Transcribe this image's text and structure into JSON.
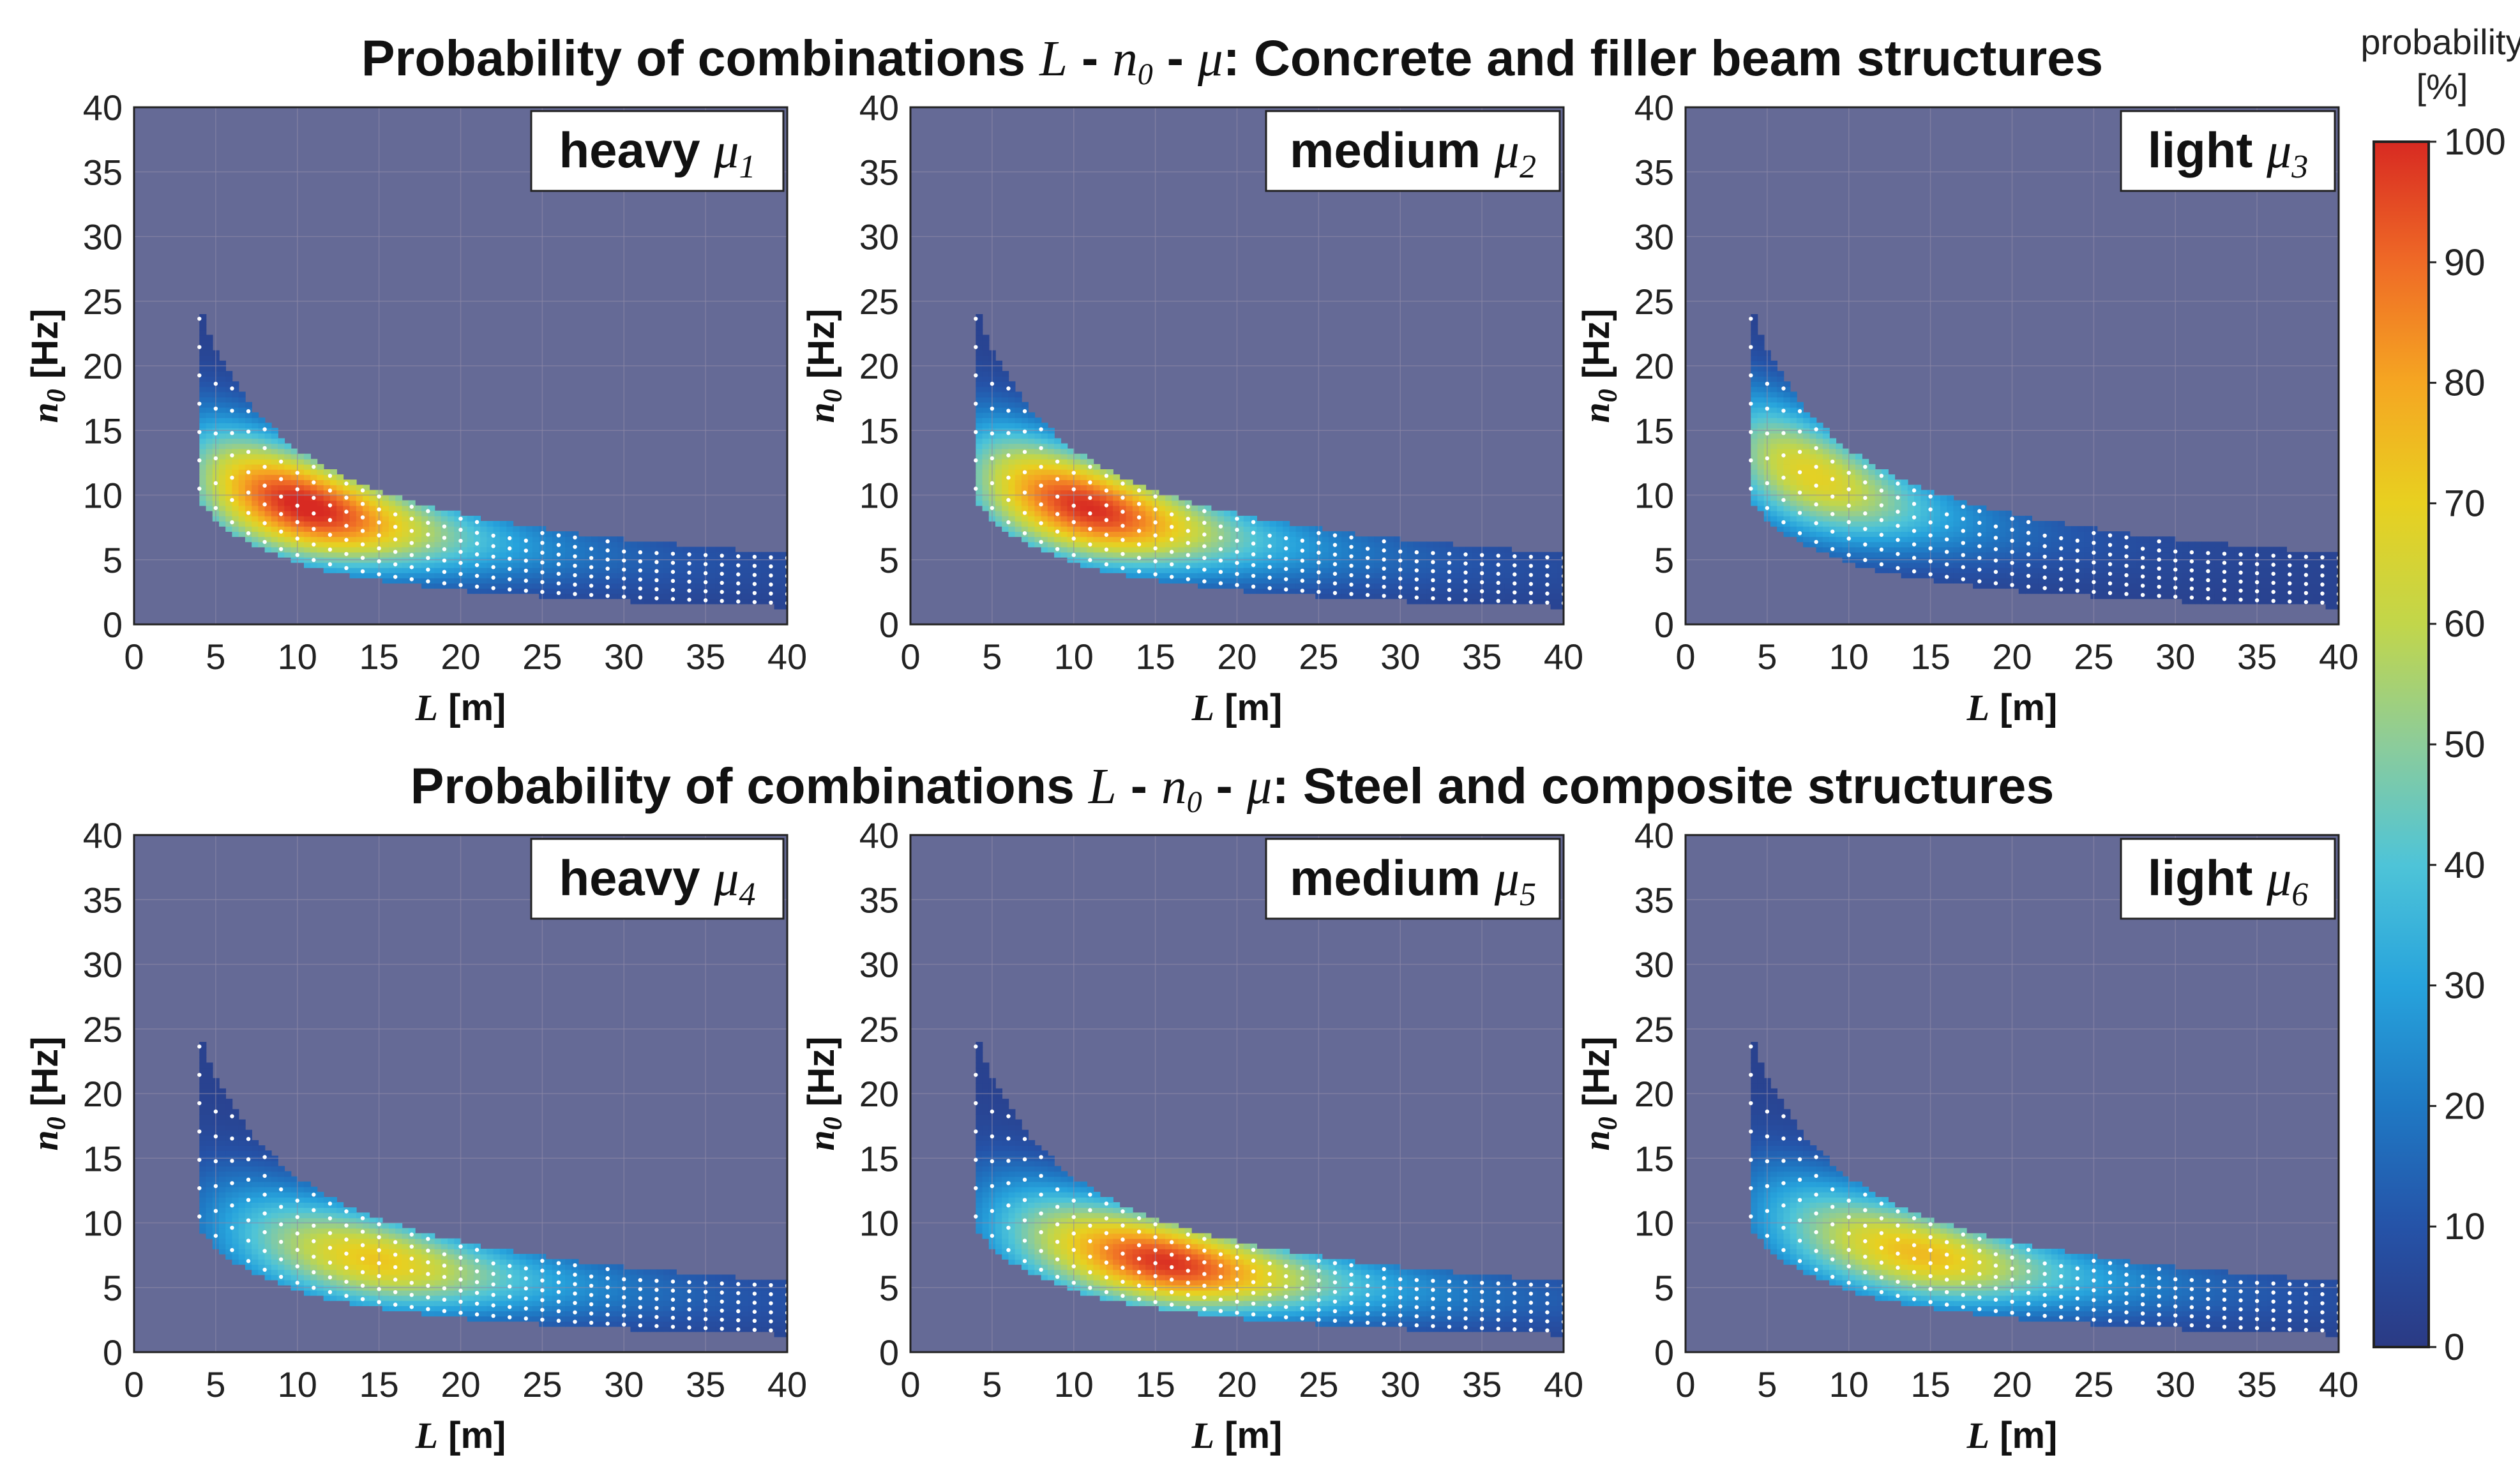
{
  "titles": {
    "row1": {
      "prefix": "Probability of combinations ",
      "L": "L",
      "sep1": " - ",
      "n": "n",
      "sub0": "0",
      "sep2": " - ",
      "mu": "μ",
      "suffix": ":  Concrete and filler beam structures"
    },
    "row2": {
      "prefix": "Probability of combinations ",
      "L": "L",
      "sep1": " - ",
      "n": "n",
      "sub0": "0",
      "sep2": " - ",
      "mu": "μ",
      "suffix": ":  Steel and composite structures"
    }
  },
  "axis": {
    "x_unit": " [m]",
    "x_var": "L",
    "y_var": "n",
    "y_sub": "0",
    "y_unit": " [Hz]",
    "xticks": [
      "0",
      "5",
      "10",
      "15",
      "20",
      "25",
      "30",
      "35",
      "40"
    ],
    "yticks": [
      "0",
      "5",
      "10",
      "15",
      "20",
      "25",
      "30",
      "35",
      "40"
    ]
  },
  "colorbar": {
    "title_line1": "probability",
    "title_line2": "[%]",
    "ticks": [
      "0",
      "10",
      "20",
      "30",
      "40",
      "50",
      "60",
      "70",
      "80",
      "90",
      "100"
    ],
    "colors": [
      "#2b3a84",
      "#2553a8",
      "#1f79c4",
      "#27a3dc",
      "#4ec4d8",
      "#8ccc9a",
      "#c2d64a",
      "#e8d020",
      "#f5a622",
      "#ef6a26",
      "#d82a22"
    ]
  },
  "chart_data": [
    {
      "type": "heatmap",
      "row": 1,
      "label": "heavy",
      "mu": "μ",
      "mu_sub": "1",
      "xlabel": "L [m]",
      "ylabel": "n0 [Hz]",
      "xlim": [
        0,
        40
      ],
      "ylim": [
        0,
        40
      ],
      "peak_L": 11,
      "peak_n0": 9.5,
      "max_probability": 100
    },
    {
      "type": "heatmap",
      "row": 1,
      "label": "medium",
      "mu": "μ",
      "mu_sub": "2",
      "xlabel": "L [m]",
      "ylabel": "n0 [Hz]",
      "xlim": [
        0,
        40
      ],
      "ylim": [
        0,
        40
      ],
      "peak_L": 11.5,
      "peak_n0": 9.5,
      "max_probability": 98
    },
    {
      "type": "heatmap",
      "row": 1,
      "label": "light",
      "mu": "μ",
      "mu_sub": "3",
      "xlabel": "L [m]",
      "ylabel": "n0 [Hz]",
      "xlim": [
        0,
        40
      ],
      "ylim": [
        0,
        40
      ],
      "peak_L": 9,
      "peak_n0": 12,
      "max_probability": 68
    },
    {
      "type": "heatmap",
      "row": 2,
      "label": "heavy",
      "mu": "μ",
      "mu_sub": "4",
      "xlabel": "L [m]",
      "ylabel": "n0 [Hz]",
      "xlim": [
        0,
        40
      ],
      "ylim": [
        0,
        40
      ],
      "peak_L": 15,
      "peak_n0": 7.5,
      "max_probability": 70
    },
    {
      "type": "heatmap",
      "row": 2,
      "label": "medium",
      "mu": "μ",
      "mu_sub": "5",
      "xlabel": "L [m]",
      "ylabel": "n0 [Hz]",
      "xlim": [
        0,
        40
      ],
      "ylim": [
        0,
        40
      ],
      "peak_L": 16,
      "peak_n0": 7.5,
      "max_probability": 97
    },
    {
      "type": "heatmap",
      "row": 2,
      "label": "light",
      "mu": "μ",
      "mu_sub": "6",
      "xlabel": "L [m]",
      "ylabel": "n0 [Hz]",
      "xlim": [
        0,
        40
      ],
      "ylim": [
        0,
        40
      ],
      "peak_L": 15,
      "peak_n0": 8.5,
      "max_probability": 75
    }
  ]
}
